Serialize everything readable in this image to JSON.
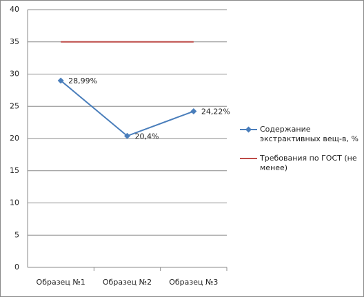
{
  "chart_data": {
    "type": "line",
    "categories": [
      "Образец №1",
      "Образец №2",
      "Образец №3"
    ],
    "series": [
      {
        "name": "Содержание экстрактивных вещ-в, %",
        "color": "#4a7ebb",
        "marker": "diamond",
        "values": [
          28.99,
          20.4,
          24.22
        ],
        "value_labels": [
          "28,99%",
          "20,4%",
          "24,22%"
        ]
      },
      {
        "name": "Требования по ГОСТ (не менее)",
        "color": "#be4b48",
        "marker": "none",
        "values": [
          35,
          35,
          35
        ]
      }
    ],
    "ylim": [
      0,
      40
    ],
    "yticks": [
      0,
      5,
      10,
      15,
      20,
      25,
      30,
      35,
      40
    ],
    "grid": true,
    "legend": "right"
  }
}
